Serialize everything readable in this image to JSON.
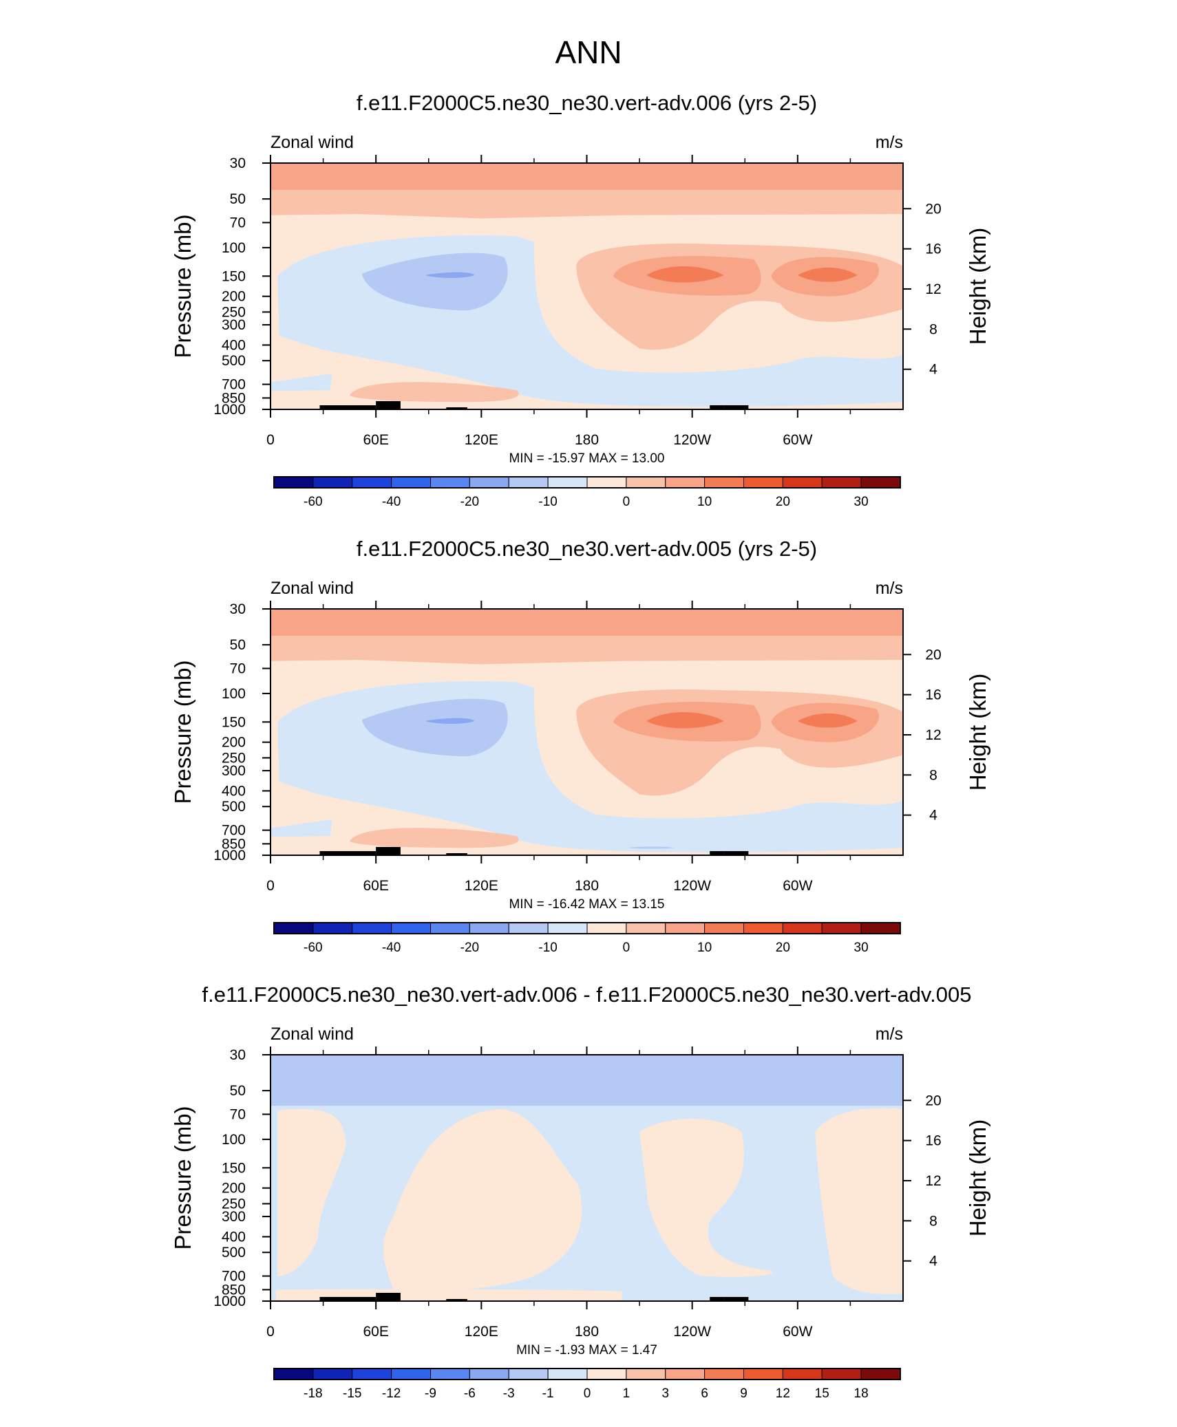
{
  "figure_title": "ANN",
  "chart_data": [
    {
      "type": "contour",
      "title": "f.e11.F2000C5.ne30_ne30.vert-adv.006 (yrs 2-5)",
      "left_label": "Zonal wind",
      "right_label": "m/s",
      "ylabel": "Pressure (mb)",
      "ylabel_right": "Height (km)",
      "x_ticks": [
        "0",
        "60E",
        "120E",
        "180",
        "120W",
        "60W"
      ],
      "y_ticks": [
        "30",
        "50",
        "70",
        "100",
        "150",
        "200",
        "250",
        "300",
        "400",
        "500",
        "700",
        "850",
        "1000"
      ],
      "height_ticks": [
        "20",
        "16",
        "12",
        "8",
        "4"
      ],
      "stats": "MIN = -15.97  MAX =  13.00",
      "min": -15.97,
      "max": 13.0,
      "colorbar_labels": [
        "-60",
        "-40",
        "-20",
        "-10",
        "0",
        "10",
        "20",
        "30"
      ]
    },
    {
      "type": "contour",
      "title": "f.e11.F2000C5.ne30_ne30.vert-adv.005 (yrs 2-5)",
      "left_label": "Zonal wind",
      "right_label": "m/s",
      "ylabel": "Pressure (mb)",
      "ylabel_right": "Height (km)",
      "x_ticks": [
        "0",
        "60E",
        "120E",
        "180",
        "120W",
        "60W"
      ],
      "y_ticks": [
        "30",
        "50",
        "70",
        "100",
        "150",
        "200",
        "250",
        "300",
        "400",
        "500",
        "700",
        "850",
        "1000"
      ],
      "height_ticks": [
        "20",
        "16",
        "12",
        "8",
        "4"
      ],
      "stats": "MIN = -16.42  MAX =  13.15",
      "min": -16.42,
      "max": 13.15,
      "colorbar_labels": [
        "-60",
        "-40",
        "-20",
        "-10",
        "0",
        "10",
        "20",
        "30"
      ]
    },
    {
      "type": "contour",
      "title": "f.e11.F2000C5.ne30_ne30.vert-adv.006 - f.e11.F2000C5.ne30_ne30.vert-adv.005",
      "left_label": "Zonal wind",
      "right_label": "m/s",
      "ylabel": "Pressure (mb)",
      "ylabel_right": "Height (km)",
      "x_ticks": [
        "0",
        "60E",
        "120E",
        "180",
        "120W",
        "60W"
      ],
      "y_ticks": [
        "30",
        "50",
        "70",
        "100",
        "150",
        "200",
        "250",
        "300",
        "400",
        "500",
        "700",
        "850",
        "1000"
      ],
      "height_ticks": [
        "20",
        "16",
        "12",
        "8",
        "4"
      ],
      "stats": "MIN =  -1.93  MAX =   1.47",
      "min": -1.93,
      "max": 1.47,
      "colorbar_labels": [
        "-18",
        "-15",
        "-12",
        "-9",
        "-6",
        "-3",
        "-1",
        "0",
        "1",
        "3",
        "6",
        "9",
        "12",
        "15",
        "18"
      ]
    }
  ],
  "colors": {
    "palette": [
      "#08087e",
      "#0f23b4",
      "#1c43dc",
      "#2f64ef",
      "#5a86f1",
      "#8aa7f2",
      "#b5c9f5",
      "#d6e6f9",
      "#fde8d8",
      "#fac2a9",
      "#f7a487",
      "#f47c55",
      "#f05a30",
      "#d6361a",
      "#b01f12",
      "#7c0a0a"
    ],
    "topography": "#000000"
  }
}
